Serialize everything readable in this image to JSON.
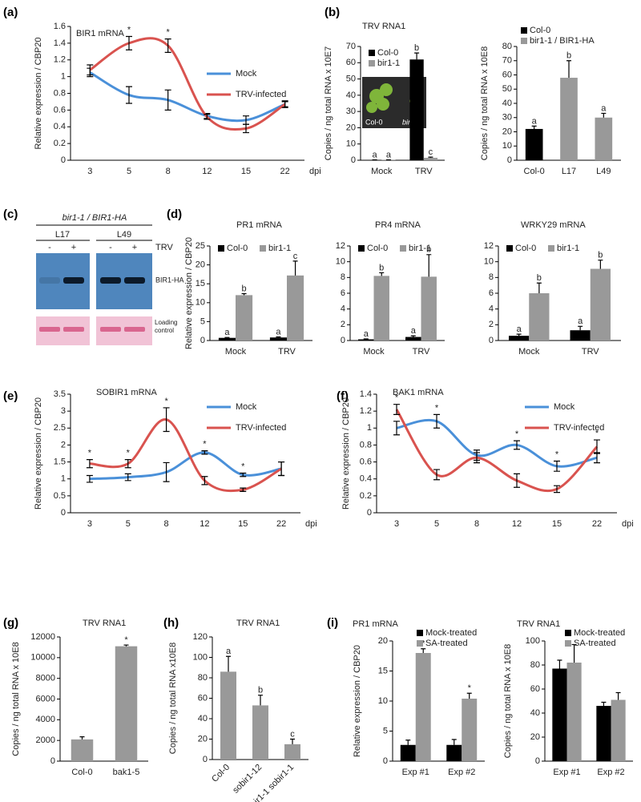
{
  "chart_data": [
    {
      "type": "line",
      "panel": "(a)",
      "title": "BIR1 mRNA",
      "ylabel": "Relative expression / CBP20",
      "categories": [
        "3",
        "5",
        "8",
        "12",
        "15",
        "22"
      ],
      "xunit": "dpi",
      "ylim": [
        0,
        1.6
      ],
      "yticks": [
        0,
        0.2,
        0.4,
        0.6,
        0.8,
        1,
        1.2,
        1.4,
        1.6
      ],
      "series": [
        {
          "name": "Mock",
          "color": "#4a90d9",
          "values": [
            1.05,
            0.78,
            0.72,
            0.53,
            0.48,
            0.67
          ],
          "errors": [
            0.05,
            0.1,
            0.12,
            0.03,
            0.05,
            0.03
          ]
        },
        {
          "name": "TRV-infected",
          "color": "#d9534f",
          "values": [
            1.08,
            1.4,
            1.37,
            0.52,
            0.38,
            0.67
          ],
          "errors": [
            0.06,
            0.08,
            0.08,
            0.03,
            0.05,
            0.04
          ]
        }
      ],
      "stars": [
        null,
        "*",
        "*",
        null,
        null,
        null
      ]
    },
    {
      "type": "bar",
      "panel": "(b)",
      "title": "TRV RNA1",
      "ylabel": "Copies / ng total RNA x 10E7",
      "categories": [
        "Mock",
        "TRV"
      ],
      "ylim": [
        0,
        70
      ],
      "yticks": [
        0,
        10,
        20,
        30,
        40,
        50,
        60,
        70
      ],
      "series": [
        {
          "name": "Col-0",
          "color": "#000000",
          "values": [
            0.2,
            62
          ],
          "errors": [
            0.05,
            4
          ],
          "labels": [
            "a",
            "b"
          ]
        },
        {
          "name": "bir1-1",
          "color": "#999999",
          "values": [
            0.2,
            1.5
          ],
          "errors": [
            0.05,
            0.4
          ],
          "labels": [
            "a",
            "c"
          ]
        }
      ],
      "inset_labels": [
        "Col-0",
        "bir1-1"
      ]
    },
    {
      "type": "bar",
      "ylabel": "Copies / ng total RNA x 10E8",
      "categories": [
        "Col-0",
        "L17",
        "L49"
      ],
      "ylim": [
        0,
        80
      ],
      "yticks": [
        0,
        10,
        20,
        30,
        40,
        50,
        60,
        70,
        80
      ],
      "series": [
        {
          "values": [
            22,
            58,
            30
          ],
          "errors": [
            2,
            12,
            3
          ],
          "labels": [
            "a",
            "b",
            "a"
          ],
          "colors": [
            "#000000",
            "#999999",
            "#999999"
          ]
        }
      ],
      "legend_items": [
        {
          "name": "Col-0",
          "color": "#000000"
        },
        {
          "name": "bir1-1 / BIR1-HA",
          "color": "#999999"
        }
      ]
    },
    {
      "type": "bar",
      "panel": "(d)",
      "title": "PR1 mRNA",
      "ylabel": "Relative expression / CBP20",
      "categories": [
        "Mock",
        "TRV"
      ],
      "ylim": [
        0,
        25
      ],
      "yticks": [
        0,
        5,
        10,
        15,
        20,
        25
      ],
      "series": [
        {
          "name": "Col-0",
          "color": "#000000",
          "values": [
            0.7,
            0.8
          ],
          "errors": [
            0.1,
            0.15
          ],
          "labels": [
            "a",
            "a"
          ]
        },
        {
          "name": "bir1-1",
          "color": "#999999",
          "values": [
            12,
            17.2
          ],
          "errors": [
            0.4,
            3.8
          ],
          "labels": [
            "b",
            "c"
          ]
        }
      ]
    },
    {
      "type": "bar",
      "title": "PR4 mRNA",
      "categories": [
        "Mock",
        "TRV"
      ],
      "ylim": [
        0,
        12
      ],
      "yticks": [
        0,
        2,
        4,
        6,
        8,
        10,
        12
      ],
      "series": [
        {
          "name": "Col-0",
          "color": "#000000",
          "values": [
            0.15,
            0.45
          ],
          "errors": [
            0.05,
            0.15
          ],
          "labels": [
            "a",
            "a"
          ]
        },
        {
          "name": "bir1-1",
          "color": "#999999",
          "values": [
            8.2,
            8.1
          ],
          "errors": [
            0.4,
            2.8
          ],
          "labels": [
            "b",
            "b"
          ]
        }
      ]
    },
    {
      "type": "bar",
      "title": "WRKY29 mRNA",
      "categories": [
        "Mock",
        "TRV"
      ],
      "ylim": [
        0,
        12
      ],
      "yticks": [
        0,
        2,
        4,
        6,
        8,
        10,
        12
      ],
      "series": [
        {
          "name": "Col-0",
          "color": "#000000",
          "values": [
            0.6,
            1.3
          ],
          "errors": [
            0.2,
            0.5
          ],
          "labels": [
            "a",
            "a"
          ]
        },
        {
          "name": "bir1-1",
          "color": "#999999",
          "values": [
            6,
            9.1
          ],
          "errors": [
            1.3,
            1.1
          ],
          "labels": [
            "b",
            "b"
          ]
        }
      ]
    },
    {
      "type": "line",
      "panel": "(e)",
      "title": "SOBIR1 mRNA",
      "ylabel": "Relative expression / CBP20",
      "categories": [
        "3",
        "5",
        "8",
        "12",
        "15",
        "22"
      ],
      "xunit": "dpi",
      "ylim": [
        0,
        3.5
      ],
      "yticks": [
        0,
        0.5,
        1,
        1.5,
        2,
        2.5,
        3,
        3.5
      ],
      "series": [
        {
          "name": "Mock",
          "color": "#4a90d9",
          "values": [
            1.0,
            1.05,
            1.2,
            1.78,
            1.12,
            1.3
          ],
          "errors": [
            0.1,
            0.1,
            0.28,
            0.05,
            0.05,
            0.2
          ]
        },
        {
          "name": "TRV-infected",
          "color": "#d9534f",
          "values": [
            1.45,
            1.45,
            2.75,
            0.95,
            0.68,
            1.3
          ],
          "errors": [
            0.12,
            0.12,
            0.35,
            0.12,
            0.05,
            0.2
          ]
        }
      ],
      "stars": [
        "*",
        "*",
        "*",
        "*",
        "*",
        null
      ]
    },
    {
      "type": "line",
      "panel": "(f)",
      "title": "BAK1 mRNA",
      "ylabel": "Relative expression / CBP20",
      "categories": [
        "3",
        "5",
        "8",
        "12",
        "15",
        "22"
      ],
      "xunit": "dpi",
      "ylim": [
        0,
        1.4
      ],
      "yticks": [
        0,
        0.2,
        0.4,
        0.6,
        0.8,
        1,
        1.2,
        1.4
      ],
      "series": [
        {
          "name": "Mock",
          "color": "#4a90d9",
          "values": [
            1.0,
            1.08,
            0.68,
            0.8,
            0.55,
            0.65
          ],
          "errors": [
            0.08,
            0.08,
            0.06,
            0.05,
            0.06,
            0.06
          ]
        },
        {
          "name": "TRV-infected",
          "color": "#d9534f",
          "values": [
            1.22,
            0.45,
            0.65,
            0.38,
            0.28,
            0.78
          ],
          "errors": [
            0.06,
            0.06,
            0.06,
            0.08,
            0.04,
            0.08
          ]
        }
      ],
      "stars": [
        "*",
        "*",
        null,
        "*",
        "*",
        "*"
      ]
    },
    {
      "type": "bar",
      "panel": "(g)",
      "title": "TRV RNA1",
      "ylabel": "Copies / ng total RNA x 10E8",
      "categories": [
        "Col-0",
        "bak1-5"
      ],
      "ylim": [
        0,
        12000
      ],
      "yticks": [
        0,
        2000,
        4000,
        6000,
        8000,
        10000,
        12000
      ],
      "series": [
        {
          "color": "#999999",
          "values": [
            2100,
            11100
          ],
          "errors": [
            250,
            120
          ],
          "labels": [
            null,
            "*"
          ]
        }
      ]
    },
    {
      "type": "bar",
      "panel": "(h)",
      "title": "TRV RNA1",
      "ylabel": "Copies / ng total RNA x10E8",
      "categories": [
        "Col-0",
        "sobir1-12",
        "bir1-1 sobir1-1"
      ],
      "ylim": [
        0,
        120
      ],
      "yticks": [
        0,
        20,
        40,
        60,
        80,
        100,
        120
      ],
      "series": [
        {
          "color": "#999999",
          "values": [
            86,
            53,
            15
          ],
          "errors": [
            15,
            10,
            5
          ],
          "labels": [
            "a",
            "b",
            "c"
          ]
        }
      ]
    },
    {
      "type": "bar",
      "panel": "(i)",
      "title": "PR1 mRNA",
      "ylabel": "Relative expression / CBP20",
      "categories": [
        "Exp #1",
        "Exp #2"
      ],
      "ylim": [
        0,
        20
      ],
      "yticks": [
        0,
        5,
        10,
        15,
        20
      ],
      "series": [
        {
          "name": "Mock-treated",
          "color": "#000000",
          "values": [
            2.7,
            2.7
          ],
          "errors": [
            0.8,
            0.9
          ]
        },
        {
          "name": "SA-treated",
          "color": "#999999",
          "values": [
            18,
            10.4
          ],
          "errors": [
            0.7,
            0.9
          ],
          "labels": [
            "*",
            "*"
          ]
        }
      ]
    },
    {
      "type": "bar",
      "title": "TRV RNA1",
      "ylabel": "Copies / ng total RNA x 10E8",
      "categories": [
        "Exp #1",
        "Exp #2"
      ],
      "ylim": [
        0,
        100
      ],
      "yticks": [
        0,
        20,
        40,
        60,
        80,
        100
      ],
      "series": [
        {
          "name": "Mock-treated",
          "color": "#000000",
          "values": [
            77,
            46
          ],
          "errors": [
            7,
            3
          ]
        },
        {
          "name": "SA-treated",
          "color": "#999999",
          "values": [
            82,
            51
          ],
          "errors": [
            15,
            6
          ]
        }
      ]
    }
  ],
  "blot": {
    "panel": "(c)",
    "genotype": "bir1-1 / BIR1-HA",
    "lines": [
      "L17",
      "L49"
    ],
    "lanes": [
      "-",
      "+",
      "-",
      "+"
    ],
    "treatment": "TRV",
    "bands": [
      "BIR1-HA",
      "Loading control"
    ]
  }
}
